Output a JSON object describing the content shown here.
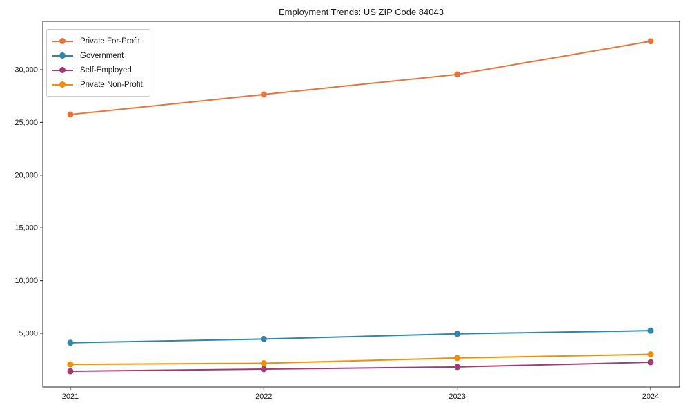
{
  "chart_data": {
    "type": "line",
    "title": "Employment Trends: US ZIP Code 84043",
    "x": [
      2021,
      2022,
      2023,
      2024
    ],
    "x_tick_labels": [
      "2021",
      "2022",
      "2023",
      "2024"
    ],
    "y_ticks": [
      5000,
      10000,
      15000,
      20000,
      25000,
      30000
    ],
    "y_tick_labels": [
      "5,000",
      "10,000",
      "15,000",
      "20,000",
      "25,000",
      "30,000"
    ],
    "ylim": [
      -150,
      34600
    ],
    "grid": false,
    "marker": "circle",
    "legend_position": "upper-left",
    "series": [
      {
        "name": "Private For-Profit",
        "color": "#E8743B",
        "values": [
          25750,
          27650,
          29550,
          32700
        ]
      },
      {
        "name": "Government",
        "color": "#2E86AB",
        "values": [
          4100,
          4450,
          4950,
          5250
        ]
      },
      {
        "name": "Self-Employed",
        "color": "#A23B72",
        "values": [
          1400,
          1600,
          1800,
          2250
        ]
      },
      {
        "name": "Private Non-Profit",
        "color": "#F18F01",
        "values": [
          2050,
          2150,
          2650,
          3000
        ]
      }
    ],
    "axis_color": "#262626",
    "background_color": "#ffffff"
  }
}
